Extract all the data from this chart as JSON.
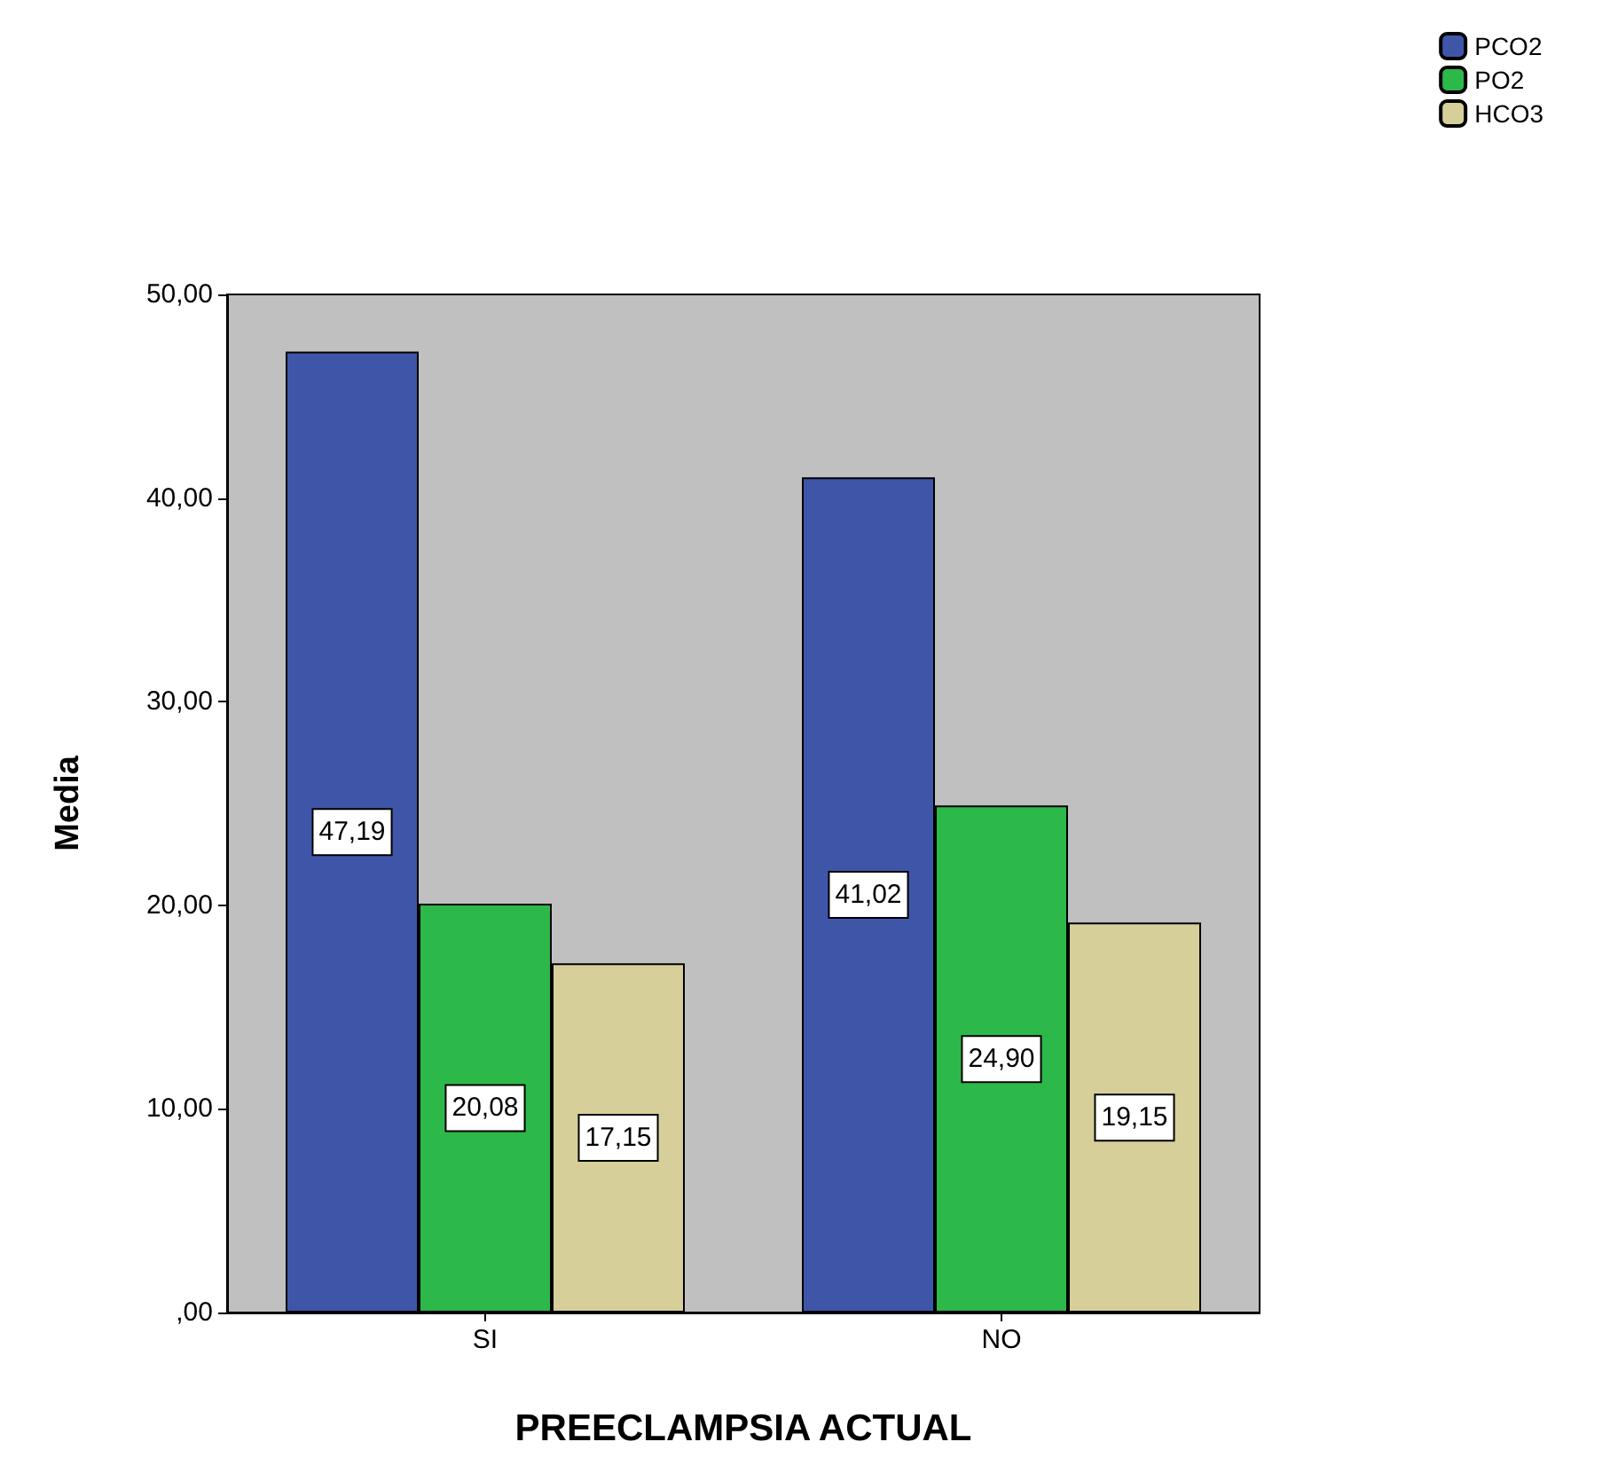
{
  "chart_data": {
    "type": "bar",
    "xlabel": "PREECLAMPSIA ACTUAL",
    "ylabel": "Media",
    "categories": [
      "SI",
      "NO"
    ],
    "series": [
      {
        "name": "PCO2",
        "color": "#3f56a8",
        "values": [
          47.19,
          41.02
        ],
        "value_labels": [
          "47,19",
          "41,02"
        ]
      },
      {
        "name": "PO2",
        "color": "#2db84a",
        "values": [
          20.08,
          24.9
        ],
        "value_labels": [
          "20,08",
          "24,90"
        ]
      },
      {
        "name": "HCO3",
        "color": "#d6cf9a",
        "values": [
          17.15,
          19.15
        ],
        "value_labels": [
          "17,15",
          "19,15"
        ]
      }
    ],
    "ylim": [
      0,
      50
    ],
    "yticks": [
      {
        "value": 0,
        "label": ",00"
      },
      {
        "value": 10,
        "label": "10,00"
      },
      {
        "value": 20,
        "label": "20,00"
      },
      {
        "value": 30,
        "label": "30,00"
      },
      {
        "value": 40,
        "label": "40,00"
      },
      {
        "value": 50,
        "label": "50,00"
      }
    ],
    "grid": false,
    "legend": "top right"
  }
}
